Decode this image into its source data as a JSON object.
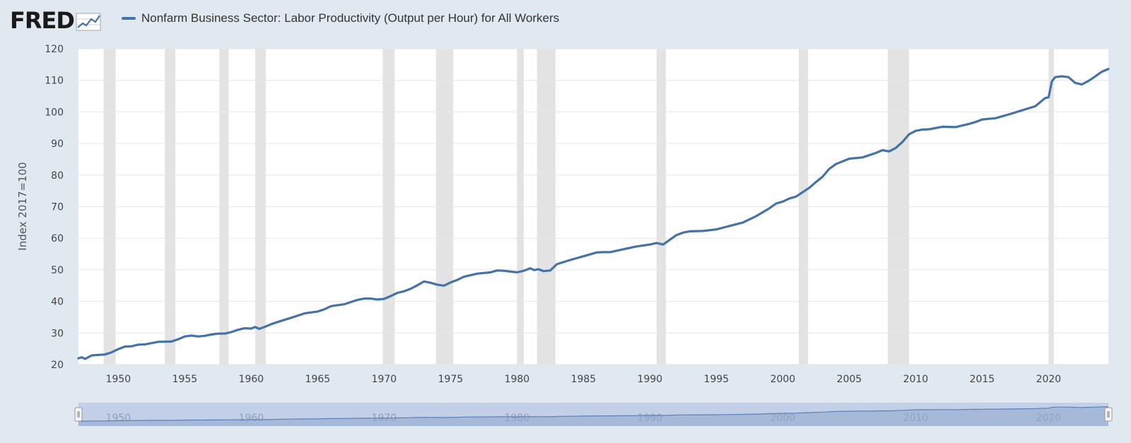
{
  "brand": {
    "logo_text": "FRED"
  },
  "colors": {
    "line": "#4572a7",
    "recession": "#e3e3e3",
    "grid": "#e6e6e6",
    "plot_bg": "#ffffff",
    "page_bg": "#e1e9f0",
    "navigator_fill": "#b8c7e3",
    "navigator_line": "#5b81b9"
  },
  "chart_data": {
    "type": "line",
    "title": "Nonfarm Business Sector: Labor Productivity (Output per Hour) for All Workers",
    "legend": [
      "Nonfarm Business Sector: Labor Productivity (Output per Hour) for All Workers"
    ],
    "legend_position": "top-left",
    "ylabel": "Index 2017=100",
    "xlabel": "",
    "xlim": [
      1947,
      2024.5
    ],
    "ylim": [
      20,
      120
    ],
    "y_ticks": [
      20,
      30,
      40,
      50,
      60,
      70,
      80,
      90,
      100,
      110,
      120
    ],
    "x_ticks": [
      1950,
      1955,
      1960,
      1965,
      1970,
      1975,
      1980,
      1985,
      1990,
      1995,
      2000,
      2005,
      2010,
      2015,
      2020
    ],
    "navigator_ticks": [
      1950,
      1960,
      1970,
      1980,
      1990,
      2000,
      2010,
      2020
    ],
    "grid": true,
    "recessions": [
      [
        1948.9,
        1949.8
      ],
      [
        1953.5,
        1954.3
      ],
      [
        1957.6,
        1958.3
      ],
      [
        1960.3,
        1961.1
      ],
      [
        1969.9,
        1970.8
      ],
      [
        1973.9,
        1975.2
      ],
      [
        1980.0,
        1980.5
      ],
      [
        1981.5,
        1982.9
      ],
      [
        1990.5,
        1991.2
      ],
      [
        2001.2,
        2001.9
      ],
      [
        2007.9,
        2009.5
      ],
      [
        2020.0,
        2020.4
      ]
    ],
    "series": [
      {
        "name": "Nonfarm Business Sector: Labor Productivity (Output per Hour) for All Workers",
        "x": [
          1947,
          1947.25,
          1947.5,
          1948,
          1949,
          1949.5,
          1950,
          1950.5,
          1951,
          1951.5,
          1952,
          1953,
          1954,
          1954.5,
          1955,
          1955.5,
          1956,
          1956.5,
          1957,
          1957.5,
          1958,
          1958.5,
          1959,
          1959.5,
          1960,
          1960.3,
          1960.6,
          1961,
          1961.5,
          1962,
          1963,
          1964,
          1964.5,
          1965,
          1965.5,
          1966,
          1967,
          1968,
          1968.5,
          1969,
          1969.5,
          1970,
          1970.5,
          1971,
          1971.5,
          1972,
          1972.5,
          1973,
          1973.5,
          1974,
          1974.5,
          1975,
          1975.5,
          1976,
          1977,
          1977.5,
          1978,
          1978.5,
          1979,
          1980,
          1980.5,
          1981,
          1981.3,
          1981.6,
          1982,
          1982.5,
          1983,
          1984,
          1985,
          1986,
          1986.5,
          1987,
          1988,
          1989,
          1990,
          1990.5,
          1991,
          1992,
          1992.5,
          1993,
          1994,
          1995,
          1996,
          1997,
          1998,
          1999,
          1999.5,
          2000,
          2000.5,
          2001,
          2002,
          2002.5,
          2003,
          2003.5,
          2004,
          2005,
          2006,
          2007,
          2007.5,
          2008,
          2008.5,
          2009,
          2009.5,
          2010,
          2010.5,
          2011,
          2012,
          2013,
          2014,
          2014.5,
          2015,
          2016,
          2017,
          2018,
          2019,
          2019.75,
          2020,
          2020.25,
          2020.5,
          2021,
          2021.5,
          2022,
          2022.5,
          2023,
          2023.5,
          2024,
          2024.5
        ],
        "values": [
          22.0,
          22.3,
          21.8,
          22.9,
          23.2,
          23.9,
          24.9,
          25.7,
          25.8,
          26.3,
          26.4,
          27.2,
          27.3,
          28.0,
          28.9,
          29.2,
          28.9,
          29.1,
          29.5,
          29.8,
          29.8,
          30.3,
          31.0,
          31.5,
          31.4,
          31.9,
          31.3,
          31.9,
          32.8,
          33.5,
          34.8,
          36.2,
          36.5,
          36.8,
          37.5,
          38.5,
          39.1,
          40.5,
          40.9,
          40.9,
          40.6,
          40.8,
          41.7,
          42.7,
          43.2,
          44.0,
          45.1,
          46.3,
          45.9,
          45.3,
          45.0,
          46.0,
          46.8,
          47.8,
          48.8,
          49.0,
          49.2,
          49.8,
          49.7,
          49.2,
          49.7,
          50.5,
          49.9,
          50.2,
          49.6,
          49.8,
          51.8,
          53.1,
          54.3,
          55.5,
          55.6,
          55.6,
          56.5,
          57.4,
          58.0,
          58.5,
          58.0,
          61.0,
          61.8,
          62.2,
          62.3,
          62.8,
          63.9,
          65.0,
          67.0,
          69.5,
          71.0,
          71.6,
          72.6,
          73.2,
          76.0,
          77.8,
          79.5,
          82.0,
          83.5,
          85.2,
          85.6,
          87.0,
          87.9,
          87.5,
          88.6,
          90.5,
          92.9,
          94.0,
          94.4,
          94.5,
          95.3,
          95.2,
          96.2,
          96.8,
          97.6,
          98.0,
          99.2,
          100.5,
          101.8,
          104.4,
          104.6,
          109.7,
          111.0,
          111.3,
          111.0,
          109.2,
          108.7,
          109.8,
          111.2,
          112.7,
          113.6
        ],
        "color": "#4572a7"
      }
    ]
  }
}
